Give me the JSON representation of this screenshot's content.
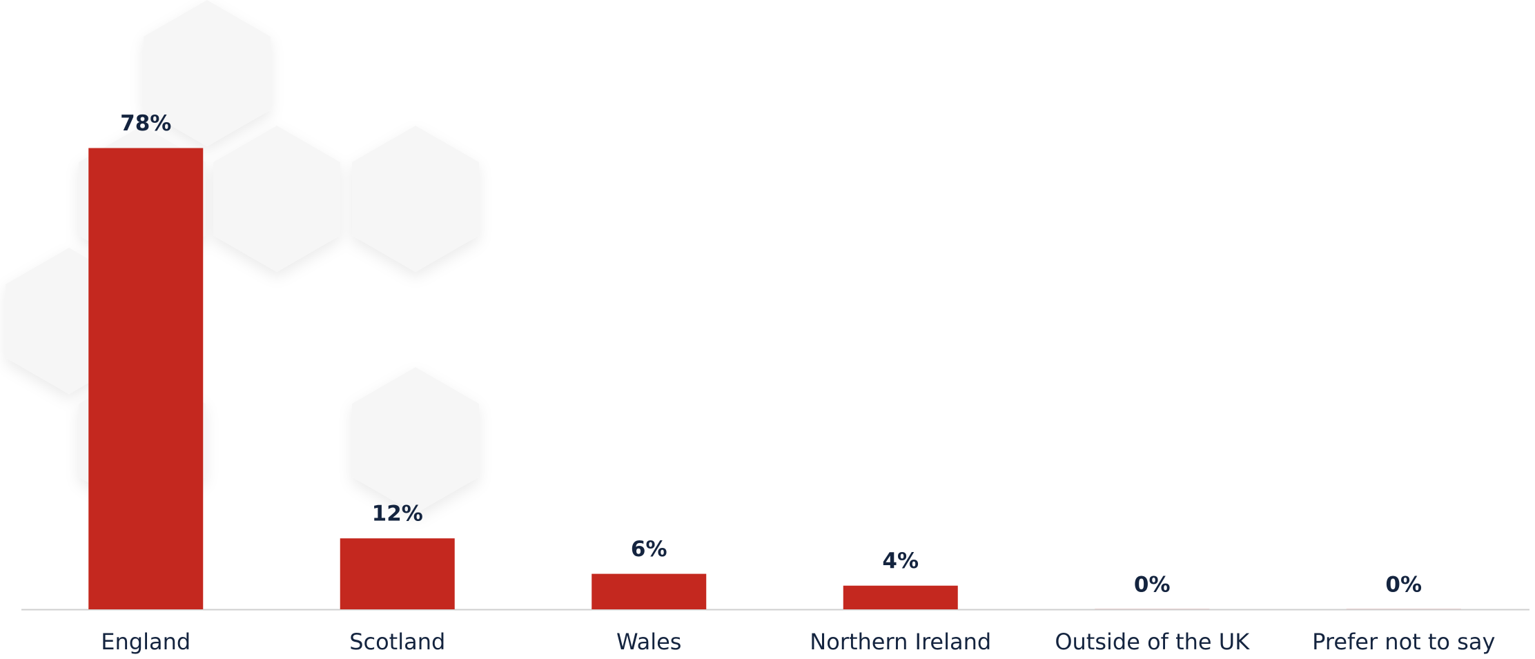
{
  "chart_data": {
    "type": "bar",
    "categories": [
      "England",
      "Scotland",
      "Wales",
      "Northern Ireland",
      "Outside of the UK",
      "Prefer not to say"
    ],
    "values": [
      78,
      12,
      6,
      4,
      0,
      0
    ],
    "value_labels": [
      "78%",
      "12%",
      "6%",
      "4%",
      "0%",
      "0%"
    ],
    "color": "#c4281f"
  }
}
